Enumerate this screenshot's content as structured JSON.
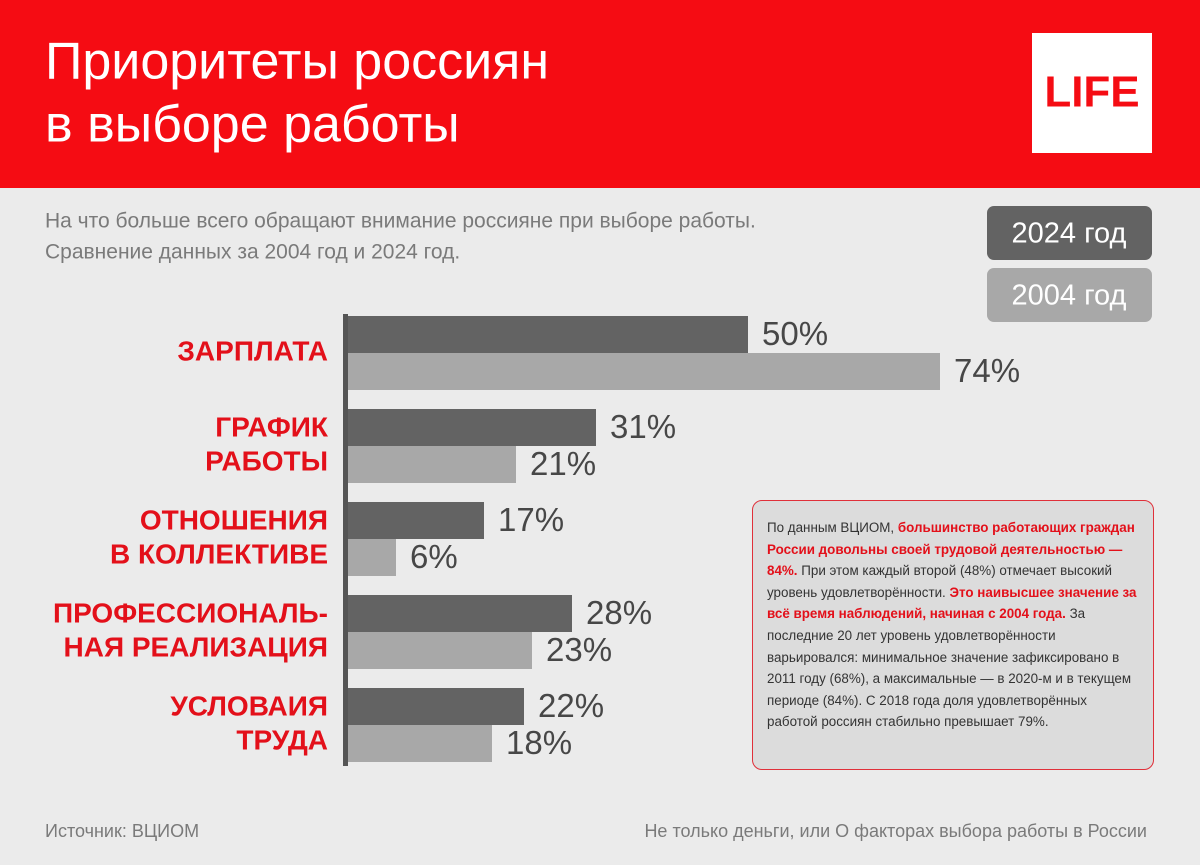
{
  "chart_data": {
    "type": "bar",
    "title": [
      "Приоритеты россиян",
      "в выборе работы"
    ],
    "subtitle": [
      "На что больше всего обращают внимание россияне при выборе работы.",
      "Сравнение данных за 2004 год и 2024 год."
    ],
    "categories": [
      [
        "ЗАРПЛАТА"
      ],
      [
        "ГРАФИК",
        "РАБОТЫ"
      ],
      [
        "ОТНОШЕНИЯ",
        "В КОЛЛЕКТИВЕ"
      ],
      [
        "ПРОФЕССИОНАЛЬ-",
        "НАЯ РЕАЛИЗАЦИЯ"
      ],
      [
        "УСЛОВАИЯ",
        "ТРУДА"
      ]
    ],
    "series": [
      {
        "name": "2024 год",
        "color": "#636363",
        "values": [
          50,
          31,
          17,
          28,
          22
        ],
        "value_labels": [
          "50%",
          "31%",
          "17%",
          "28%",
          "22%"
        ]
      },
      {
        "name": "2004 год",
        "color": "#a8a8a8",
        "values": [
          74,
          21,
          6,
          23,
          18
        ],
        "value_labels": [
          "74%",
          "21%",
          "6%",
          "23%",
          "18%"
        ]
      }
    ],
    "source": "Источник: ВЦИОМ",
    "note": "Не только деньги, или О факторах выбора работы в России"
  },
  "logo": "LIFE",
  "info_box": {
    "segments": [
      {
        "text": "По данным ВЦИОМ, ",
        "highlight": false
      },
      {
        "text": "большинство работающих граждан России довольны своей трудовой деятельностью — 84%.",
        "highlight": true
      },
      {
        "text": " При этом каждый второй (48%) отмечает высокий уровень удовлетворённости. ",
        "highlight": false
      },
      {
        "text": "Это наивысшее значение за всё время наблюдений, начиная с 2004 года.",
        "highlight": true
      },
      {
        "text": " За последние 20 лет уровень удовлетворённости варьировался: минимальное значение зафиксировано в 2011 году (68%), а максимальные — в 2020-м и в текущем периоде (84%). С 2018 года доля удовлетворённых работой россиян стабильно превышает 79%.",
        "highlight": false
      }
    ]
  }
}
